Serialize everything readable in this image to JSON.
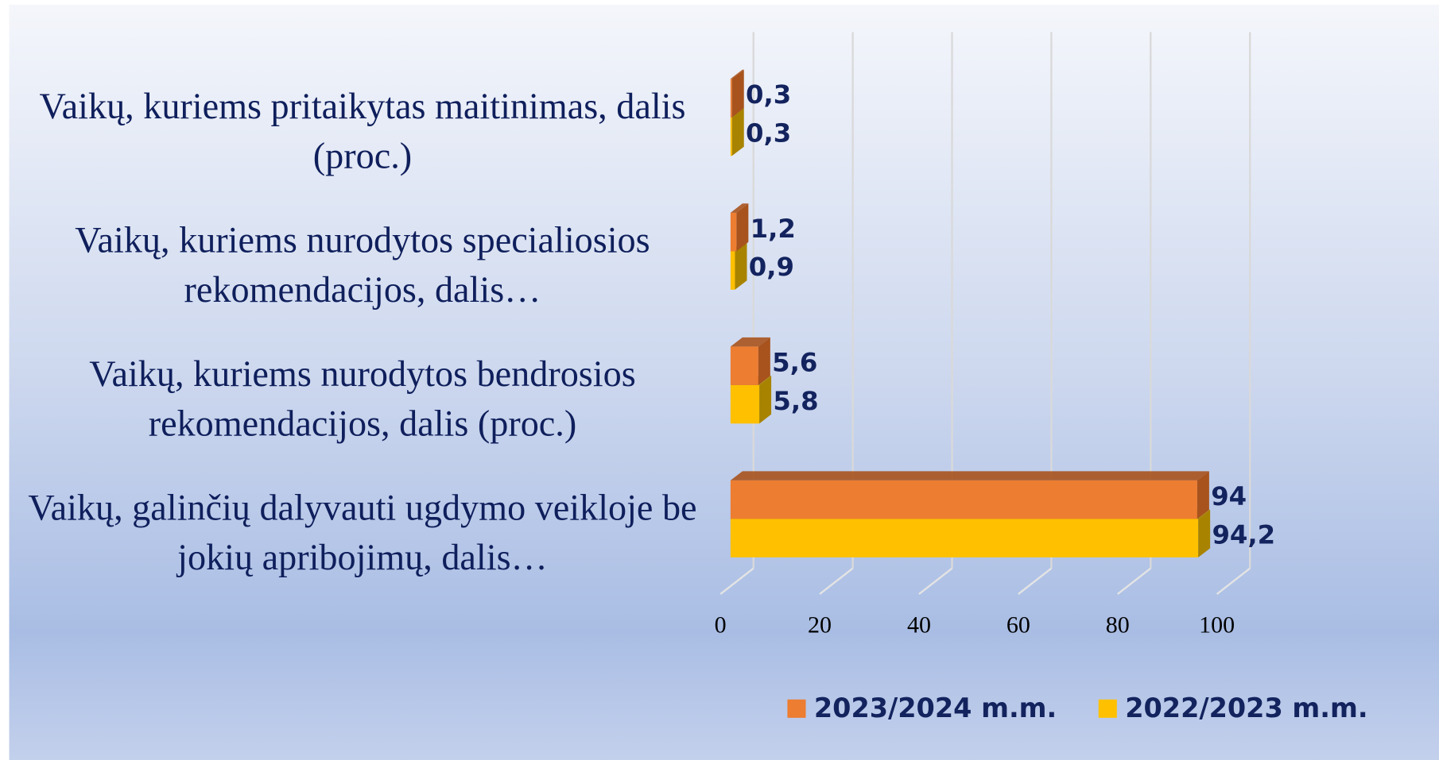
{
  "chart_data": {
    "type": "bar3d_horizontal",
    "categories": [
      "Vaikų, kuriems pritaikytas maitinimas, dalis (proc.)",
      "Vaikų, kuriems nurodytos specialiosios rekomendacijos, dalis…",
      "Vaikų, kuriems nurodytos bendrosios rekomendacijos, dalis (proc.)",
      "Vaikų, galinčių dalyvauti ugdymo veikloje be jokių apribojimų, dalis…"
    ],
    "series": [
      {
        "name": "2023/2024 m.m.",
        "color": "#ed7d31",
        "side_color": "#a8531d",
        "values": [
          0.3,
          1.2,
          5.6,
          94
        ],
        "value_labels": [
          "0,3",
          "1,2",
          "5,6",
          "94"
        ]
      },
      {
        "name": "2022/2023 m.m.",
        "color": "#ffc000",
        "side_color": "#a88300",
        "values": [
          0.3,
          0.9,
          5.8,
          94.2
        ],
        "value_labels": [
          "0,3",
          "0,9",
          "5,8",
          "94,2"
        ]
      }
    ],
    "xlim": [
      0,
      100
    ],
    "xticks": [
      0,
      20,
      40,
      60,
      80,
      100
    ],
    "grid": true,
    "legend": "bottom"
  }
}
